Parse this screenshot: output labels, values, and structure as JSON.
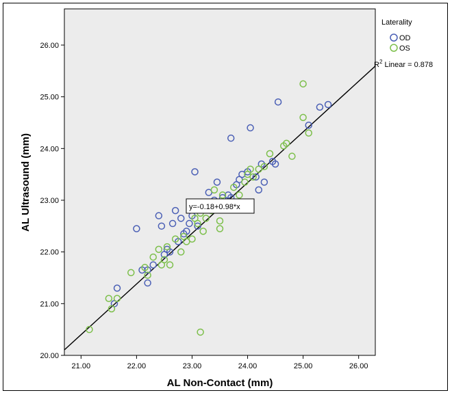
{
  "chart_data": {
    "type": "scatter",
    "title": "",
    "xlabel": "AL Non-Contact (mm)",
    "ylabel": "AL Ultrasound (mm)",
    "xlim": [
      20.7,
      26.3
    ],
    "ylim": [
      20.0,
      26.7
    ],
    "xticks": [
      "21.00",
      "22.00",
      "23.00",
      "24.00",
      "25.00",
      "26.00"
    ],
    "yticks": [
      "20.00",
      "21.00",
      "22.00",
      "23.00",
      "24.00",
      "25.00",
      "26.00"
    ],
    "grid": false,
    "legend": {
      "title": "Laterality",
      "placement": "right"
    },
    "fit_line": {
      "intercept": -0.18,
      "slope": 0.98,
      "label": "y=-0.18+0.98*x"
    },
    "r2_label": {
      "prefix": "R",
      "sup": "2",
      "text": " Linear = 0.878"
    },
    "series": [
      {
        "name": "OD",
        "color": "#4a5fb5",
        "points": [
          [
            21.6,
            21.0
          ],
          [
            21.65,
            21.3
          ],
          [
            22.1,
            21.65
          ],
          [
            22.2,
            21.4
          ],
          [
            22.2,
            21.65
          ],
          [
            22.3,
            21.75
          ],
          [
            22.0,
            22.45
          ],
          [
            22.4,
            22.7
          ],
          [
            22.45,
            22.5
          ],
          [
            22.5,
            21.95
          ],
          [
            22.55,
            22.05
          ],
          [
            22.6,
            22.0
          ],
          [
            22.65,
            22.55
          ],
          [
            22.7,
            22.8
          ],
          [
            22.75,
            22.2
          ],
          [
            22.8,
            22.65
          ],
          [
            22.85,
            22.35
          ],
          [
            22.9,
            22.4
          ],
          [
            22.95,
            22.55
          ],
          [
            23.0,
            22.7
          ],
          [
            23.05,
            23.55
          ],
          [
            23.1,
            22.5
          ],
          [
            23.2,
            22.9
          ],
          [
            23.3,
            23.15
          ],
          [
            23.4,
            23.0
          ],
          [
            23.45,
            23.35
          ],
          [
            23.55,
            23.05
          ],
          [
            23.65,
            23.1
          ],
          [
            23.7,
            23.05
          ],
          [
            23.7,
            24.2
          ],
          [
            23.8,
            23.3
          ],
          [
            23.85,
            23.4
          ],
          [
            23.9,
            23.5
          ],
          [
            24.0,
            23.55
          ],
          [
            24.05,
            24.4
          ],
          [
            24.15,
            23.45
          ],
          [
            24.2,
            23.2
          ],
          [
            24.25,
            23.7
          ],
          [
            24.3,
            23.35
          ],
          [
            24.45,
            23.75
          ],
          [
            24.5,
            23.7
          ],
          [
            24.55,
            24.9
          ],
          [
            25.1,
            24.45
          ],
          [
            25.3,
            24.8
          ],
          [
            25.45,
            24.85
          ]
        ]
      },
      {
        "name": "OS",
        "color": "#7cbf4a",
        "points": [
          [
            21.15,
            20.5
          ],
          [
            21.5,
            21.1
          ],
          [
            21.55,
            20.9
          ],
          [
            21.65,
            21.1
          ],
          [
            21.9,
            21.6
          ],
          [
            22.15,
            21.7
          ],
          [
            22.2,
            21.55
          ],
          [
            22.3,
            21.9
          ],
          [
            22.4,
            22.05
          ],
          [
            22.45,
            21.75
          ],
          [
            22.5,
            21.85
          ],
          [
            22.6,
            21.75
          ],
          [
            22.7,
            22.25
          ],
          [
            22.8,
            22.0
          ],
          [
            22.85,
            22.3
          ],
          [
            22.9,
            22.2
          ],
          [
            23.0,
            22.25
          ],
          [
            23.05,
            22.65
          ],
          [
            23.1,
            22.55
          ],
          [
            23.15,
            22.75
          ],
          [
            23.2,
            22.4
          ],
          [
            23.25,
            22.65
          ],
          [
            23.3,
            22.9
          ],
          [
            23.4,
            23.2
          ],
          [
            23.5,
            22.45
          ],
          [
            23.5,
            22.6
          ],
          [
            23.55,
            23.1
          ],
          [
            23.65,
            22.95
          ],
          [
            23.75,
            23.25
          ],
          [
            23.85,
            23.1
          ],
          [
            23.95,
            23.35
          ],
          [
            24.0,
            23.5
          ],
          [
            24.05,
            23.6
          ],
          [
            24.1,
            23.45
          ],
          [
            24.2,
            23.6
          ],
          [
            24.3,
            23.65
          ],
          [
            24.4,
            23.9
          ],
          [
            24.65,
            24.05
          ],
          [
            24.7,
            24.1
          ],
          [
            24.8,
            23.85
          ],
          [
            25.0,
            24.6
          ],
          [
            25.0,
            25.25
          ],
          [
            25.1,
            24.3
          ],
          [
            23.15,
            20.45
          ],
          [
            22.55,
            22.1
          ],
          [
            23.35,
            22.8
          ]
        ]
      }
    ]
  }
}
